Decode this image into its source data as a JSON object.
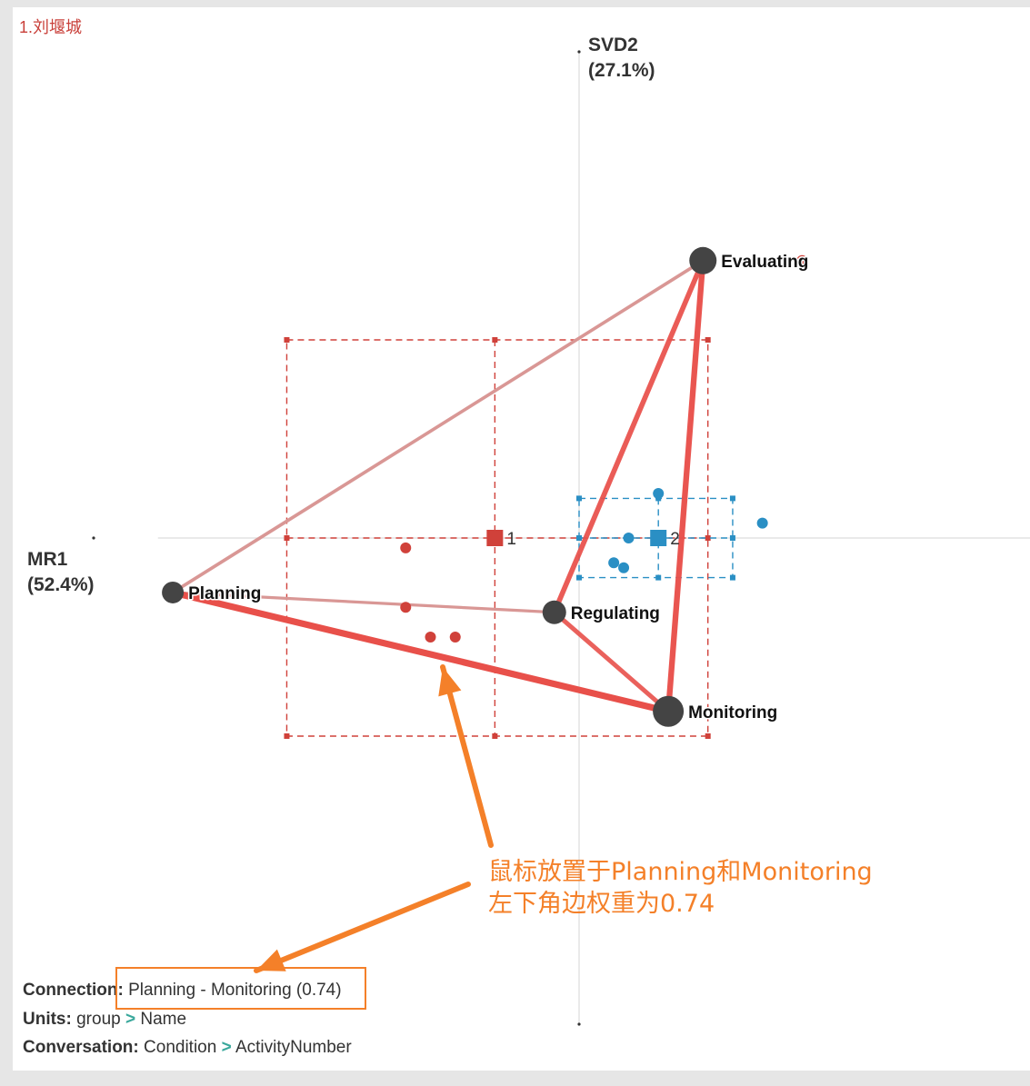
{
  "page_title": "1.刘堰城",
  "chart_data": {
    "type": "scatter",
    "subtype": "epistemic-network",
    "x_axis": {
      "name": "MR1",
      "variance": "(52.4%)",
      "range": [
        -0.85,
        0.95
      ]
    },
    "y_axis": {
      "name": "SVD2",
      "variance": "(27.1%)",
      "range": [
        -1.0,
        1.0
      ]
    },
    "nodes": [
      {
        "name": "Evaluating",
        "x": 0.25,
        "y": 0.56,
        "size": 15
      },
      {
        "name": "Planning",
        "x": -0.82,
        "y": -0.11,
        "size": 12
      },
      {
        "name": "Regulating",
        "x": -0.05,
        "y": -0.15,
        "size": 13
      },
      {
        "name": "Monitoring",
        "x": 0.18,
        "y": -0.35,
        "size": 17
      }
    ],
    "edges": [
      {
        "from": "Planning",
        "to": "Monitoring",
        "weight": 0.74
      },
      {
        "from": "Evaluating",
        "to": "Monitoring",
        "weight": 0.62
      },
      {
        "from": "Evaluating",
        "to": "Regulating",
        "weight": 0.52
      },
      {
        "from": "Regulating",
        "to": "Monitoring",
        "weight": 0.42
      },
      {
        "from": "Planning",
        "to": "Evaluating",
        "weight": 0.24
      },
      {
        "from": "Planning",
        "to": "Regulating",
        "weight": 0.18
      }
    ],
    "groups": [
      {
        "label": "1",
        "color": "#d0413a",
        "mean": [
          -0.17,
          0.0
        ],
        "ci_x": [
          -0.59,
          0.26
        ],
        "ci_y": [
          -0.4,
          0.4
        ],
        "points": [
          [
            -0.35,
            -0.02
          ],
          [
            -0.35,
            -0.14
          ],
          [
            -0.3,
            -0.2
          ],
          [
            -0.25,
            -0.2
          ],
          [
            0.45,
            0.56
          ]
        ]
      },
      {
        "label": "2",
        "color": "#2a8fc4",
        "mean": [
          0.16,
          0.0
        ],
        "ci_x": [
          0.0,
          0.31
        ],
        "ci_y": [
          -0.08,
          0.08
        ],
        "points": [
          [
            0.16,
            0.09
          ],
          [
            0.1,
            0.0
          ],
          [
            0.07,
            -0.05
          ],
          [
            0.09,
            -0.06
          ],
          [
            0.37,
            0.03
          ]
        ]
      }
    ]
  },
  "info": {
    "connection_label": "Connection:",
    "connection_value": "Planning - Monitoring (0.74)",
    "units_label": "Units:",
    "units_a": "group",
    "units_sep": ">",
    "units_b": "Name",
    "conversation_label": "Conversation:",
    "conversation_a": "Condition",
    "conversation_sep": ">",
    "conversation_b": "ActivityNumber"
  },
  "annotation": {
    "line1": "鼠标放置于Planning和Monitoring",
    "line2": "左下角边权重为0.74"
  },
  "colors": {
    "accent": "#f48029",
    "edge_strong": "#e8504a",
    "edge_weak": "#d99795",
    "node": "#444444"
  }
}
